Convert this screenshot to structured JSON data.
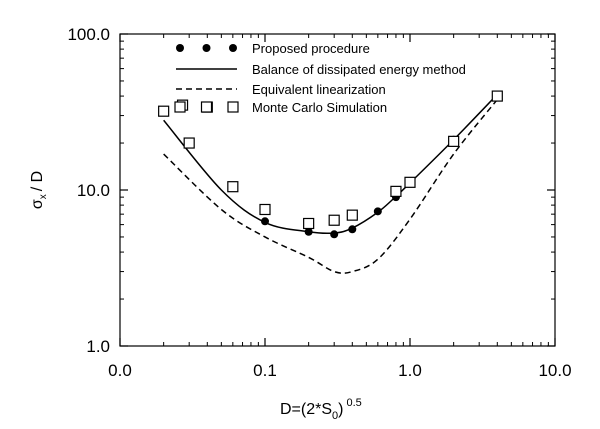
{
  "chart_data": {
    "type": "line",
    "xscale": "log",
    "yscale": "log",
    "xlim": [
      0.01,
      10.0
    ],
    "ylim": [
      1.0,
      100.0
    ],
    "x_ticks": [
      {
        "value": 0.01,
        "label": "0.0"
      },
      {
        "value": 0.1,
        "label": "0.1"
      },
      {
        "value": 1.0,
        "label": "1.0"
      },
      {
        "value": 10.0,
        "label": "10.0"
      }
    ],
    "y_ticks": [
      {
        "value": 1.0,
        "label": "1.0"
      },
      {
        "value": 10.0,
        "label": "10.0"
      },
      {
        "value": 100.0,
        "label": "100.0"
      }
    ],
    "xlabel": {
      "main": "D=(2*S",
      "sub": "0",
      "close": ")",
      "sup": "0.5"
    },
    "ylabel": {
      "sigma": "σ",
      "sub": "x",
      "rest": "/ D"
    },
    "grid": false,
    "legend_position": "top-center",
    "series": [
      {
        "name": "Proposed procedure",
        "style": "dots",
        "x": [
          0.1,
          0.2,
          0.3,
          0.4,
          0.6,
          0.8,
          1.0,
          2.0,
          4.0
        ],
        "y": [
          6.3,
          5.4,
          5.2,
          5.6,
          7.3,
          9.0,
          11.0,
          21.0,
          40.0
        ]
      },
      {
        "name": "Balance of dissipated energy method",
        "style": "solid",
        "x": [
          0.02,
          0.05,
          0.1,
          0.2,
          0.3,
          0.4,
          0.6,
          0.8,
          1.0,
          2.0,
          4.0
        ],
        "y": [
          28.0,
          10.0,
          6.2,
          5.4,
          5.3,
          5.7,
          7.2,
          9.1,
          11.1,
          21.0,
          41.0
        ]
      },
      {
        "name": "Equivalent linearization",
        "style": "dashed",
        "x": [
          0.02,
          0.05,
          0.1,
          0.2,
          0.3,
          0.4,
          0.6,
          1.0,
          2.0,
          4.0
        ],
        "y": [
          17.0,
          7.5,
          5.0,
          3.7,
          3.0,
          3.0,
          3.6,
          6.5,
          17.0,
          38.0
        ]
      },
      {
        "name": "Monte Carlo Simulation",
        "style": "squares",
        "x": [
          0.02,
          0.027,
          0.03,
          0.04,
          0.06,
          0.1,
          0.2,
          0.3,
          0.4,
          0.8,
          1.0,
          2.0,
          4.0
        ],
        "y": [
          32.0,
          35.0,
          20.0,
          34.0,
          10.5,
          7.5,
          6.1,
          6.4,
          6.9,
          9.8,
          11.2,
          20.5,
          40.0
        ]
      }
    ]
  }
}
